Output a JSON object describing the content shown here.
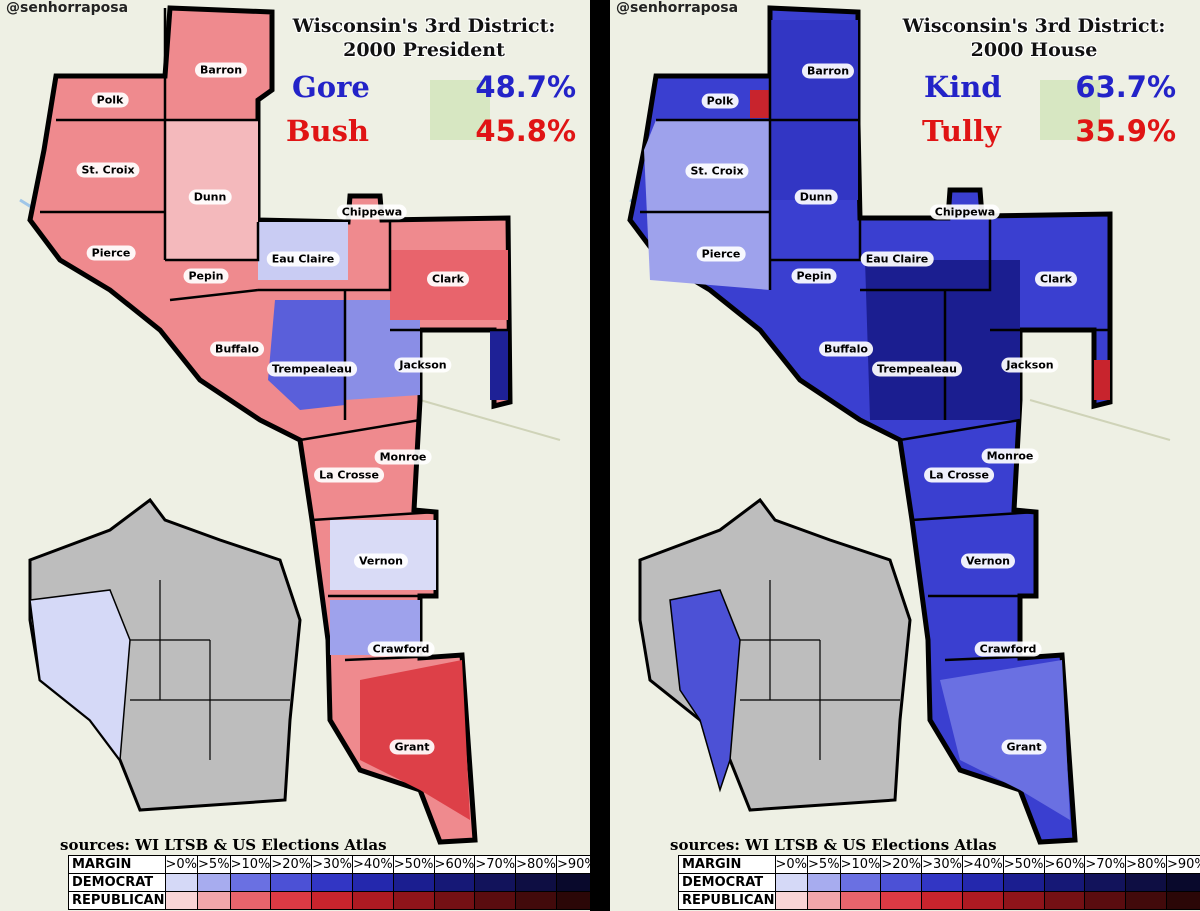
{
  "panels": [
    {
      "handle": "@senhorraposa",
      "title_line1": "Wisconsin's 3rd District:",
      "title_line2": "2000 President",
      "dem_candidate": "Gore",
      "dem_pct": "48.7%",
      "rep_candidate": "Bush",
      "rep_pct": "45.8%",
      "sources": "sources: WI LTSB & US Elections Atlas"
    },
    {
      "handle": "@senhorraposa",
      "title_line1": "Wisconsin's 3rd District:",
      "title_line2": "2000 House",
      "dem_candidate": "Kind",
      "dem_pct": "63.7%",
      "rep_candidate": "Tully",
      "rep_pct": "35.9%",
      "sources": "sources: WI LTSB & US Elections Atlas"
    }
  ],
  "counties": [
    "Barron",
    "Polk",
    "St. Croix",
    "Dunn",
    "Chippewa",
    "Eau Claire",
    "Pierce",
    "Pepin",
    "Clark",
    "Buffalo",
    "Trempealeau",
    "Jackson",
    "Monroe",
    "La Crosse",
    "Vernon",
    "Crawford",
    "Grant"
  ],
  "legend": {
    "margin_label": "MARGIN",
    "democrat_label": "DEMOCRAT",
    "republican_label": "REPUBLICAN",
    "headers": [
      ">0%",
      ">5%",
      ">10%",
      ">20%",
      ">30%",
      ">40%",
      ">50%",
      ">60%",
      ">70%",
      ">80%",
      ">90%"
    ],
    "dem_colors": [
      "#d5d9f7",
      "#a7acef",
      "#6a70e2",
      "#4c51d6",
      "#3236c4",
      "#2428ad",
      "#1b1e90",
      "#161876",
      "#12135b",
      "#0e0e43",
      "#09092c"
    ],
    "rep_colors": [
      "#f9d4d6",
      "#f1a6ab",
      "#e8646c",
      "#dc3a44",
      "#c8242d",
      "#ad1a22",
      "#8f141a",
      "#741014",
      "#5a0c0f",
      "#420a0b",
      "#2b0707"
    ]
  },
  "colors": {
    "dem_text": "#2323c8",
    "rep_text": "#e01414",
    "outside_district_gray": "#bdbdbd"
  }
}
